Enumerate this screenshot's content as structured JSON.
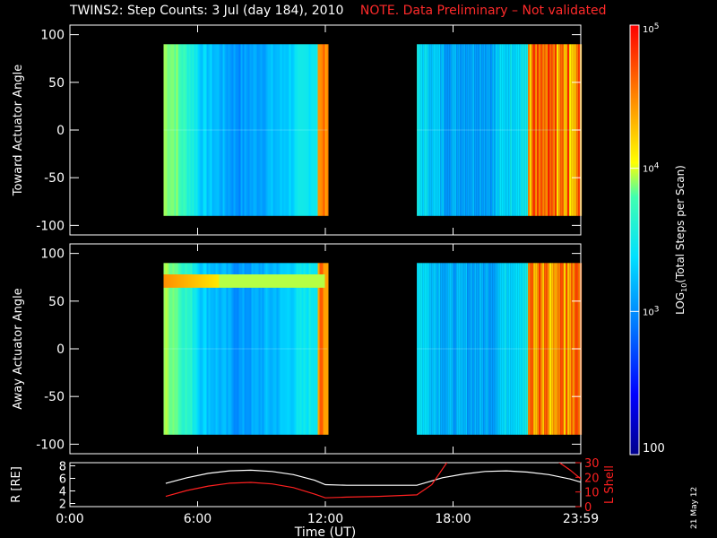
{
  "header": {
    "title": "TWINS2: Step Counts:  3 Jul (day 184), 2010",
    "note": "NOTE. Data Preliminary – Not validated"
  },
  "date_stamp": "21 May 12",
  "colors": {
    "background": "#000000",
    "axis": "#ffffff",
    "note_red": "#ff2a2a",
    "lshell_red": "#ff2020",
    "colormap": [
      "#00008c",
      "#0000ff",
      "#0078ff",
      "#00e0ff",
      "#40ffb0",
      "#ffff00",
      "#ff8000",
      "#ff0000"
    ]
  },
  "chart_data": [
    {
      "type": "heatmap",
      "id": "toward",
      "ylabel": "Toward Actuator Angle",
      "yticks": [
        100,
        50,
        0,
        -50,
        -100
      ],
      "ylim": [
        -110,
        110
      ],
      "xlim": [
        0,
        24
      ],
      "data_y_range": [
        -90,
        90
      ],
      "data_intervals": [
        [
          4.4,
          12.1
        ],
        [
          16.3,
          24.0
        ]
      ]
    },
    {
      "type": "heatmap",
      "id": "away",
      "ylabel": "Away Actuator Angle",
      "yticks": [
        100,
        50,
        0,
        -50,
        -100
      ],
      "ylim": [
        -110,
        110
      ],
      "xlim": [
        0,
        24
      ],
      "xticks": [
        "0:00",
        "6:00",
        "12:00",
        "18:00",
        "23:59"
      ],
      "xlabel": "Time (UT)",
      "data_y_range": [
        -90,
        90
      ],
      "data_intervals": [
        [
          4.4,
          12.1
        ],
        [
          16.3,
          24.0
        ]
      ]
    },
    {
      "type": "colorbar",
      "label": "LOG10(Total Steps per Scan)",
      "tick_labels": [
        "10^5",
        "10^4",
        "10^3",
        "100"
      ],
      "range": [
        100,
        100000
      ],
      "scale": "log"
    },
    {
      "type": "line",
      "id": "orbit",
      "ylabel_left": "R [RE]",
      "ylabel_right": "L Shell",
      "left_ticks": [
        2,
        4,
        6,
        8
      ],
      "right_ticks": [
        0,
        10,
        20,
        30
      ],
      "left_lim": [
        1.5,
        8.5
      ],
      "right_lim": [
        0,
        30
      ],
      "xlim": [
        0,
        24
      ],
      "series": [
        {
          "axis": "left",
          "color": "#ffffff",
          "x": [
            4.5,
            5.5,
            6.5,
            7.5,
            8.5,
            9.5,
            10.5,
            11.5,
            12.0,
            13.0,
            14.0,
            15.0,
            16.3,
            17.0,
            17.5,
            18.5,
            19.5,
            20.5,
            21.5,
            22.5,
            23.5,
            24.0
          ],
          "y": [
            5.2,
            6.1,
            6.8,
            7.2,
            7.3,
            7.1,
            6.6,
            5.7,
            5.0,
            4.9,
            4.9,
            4.9,
            4.9,
            5.6,
            6.1,
            6.7,
            7.1,
            7.2,
            7.0,
            6.6,
            5.9,
            5.4
          ]
        },
        {
          "axis": "right",
          "color": "#ff2020",
          "x": [
            4.5,
            5.5,
            6.5,
            7.5,
            8.5,
            9.5,
            10.5,
            11.5,
            12.0,
            13.0,
            14.5,
            16.3,
            17.0,
            17.8,
            22.8,
            23.5,
            24.0
          ],
          "y": [
            7,
            11,
            14,
            16,
            16.5,
            15.5,
            13,
            8.5,
            6,
            6.5,
            7,
            8,
            15,
            32,
            32,
            25,
            19
          ]
        }
      ]
    }
  ]
}
